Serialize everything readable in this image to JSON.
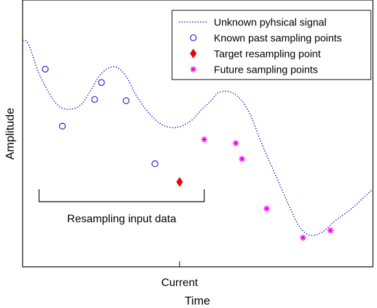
{
  "chart_data": {
    "type": "line",
    "xlabel": "Time",
    "ylabel": "Amplitude",
    "x_tick_label": "Current",
    "bracket_label": "Resampling input data",
    "legend_placement": "top-right",
    "grid": false,
    "series": [
      {
        "name": "Unknown pyhsical signal",
        "kind": "dotted-line",
        "color": "#1f1fcc",
        "points": [
          [
            0,
            33
          ],
          [
            9,
            37
          ],
          [
            25,
            62
          ],
          [
            47,
            84
          ],
          [
            64,
            90
          ],
          [
            84,
            87
          ],
          [
            99,
            75
          ],
          [
            114,
            61
          ],
          [
            134,
            55
          ],
          [
            151,
            63
          ],
          [
            166,
            79
          ],
          [
            184,
            93
          ],
          [
            204,
            103
          ],
          [
            226,
            105
          ],
          [
            247,
            99
          ],
          [
            260,
            91
          ],
          [
            275,
            83
          ],
          [
            287,
            76
          ],
          [
            308,
            77
          ],
          [
            329,
            91
          ],
          [
            350,
            120
          ],
          [
            371,
            147
          ],
          [
            389,
            170
          ],
          [
            404,
            187
          ],
          [
            420,
            194
          ],
          [
            438,
            191
          ],
          [
            456,
            182
          ],
          [
            480,
            172
          ],
          [
            501,
            161
          ],
          [
            511,
            156
          ]
        ]
      },
      {
        "name": "Known past sampling points",
        "kind": "circle-marker",
        "color": "#1f1fcc",
        "points": [
          [
            33,
            57
          ],
          [
            58,
            104
          ],
          [
            105,
            82
          ],
          [
            115,
            68
          ],
          [
            151,
            83
          ],
          [
            193,
            135
          ]
        ]
      },
      {
        "name": "Target resampling point",
        "kind": "diamond-marker",
        "color": "#ee0000",
        "points": [
          [
            229,
            150
          ]
        ]
      },
      {
        "name": "Future sampling points",
        "kind": "asterisk-marker",
        "color": "#ee00ee",
        "points": [
          [
            265,
            115
          ],
          [
            311,
            118
          ],
          [
            320,
            131
          ],
          [
            356,
            172
          ],
          [
            409,
            196
          ],
          [
            449,
            190
          ]
        ]
      }
    ],
    "xlim": [
      0,
      511
    ],
    "ylim": [
      0,
      220
    ],
    "y_inverted": true,
    "current_x": 229,
    "bracket_x": [
      24,
      265
    ]
  },
  "colors": {
    "signal": "#1f1fcc",
    "known": "#1f1fcc",
    "target": "#ee0000",
    "future": "#ee00ee",
    "axes": "#000000"
  }
}
